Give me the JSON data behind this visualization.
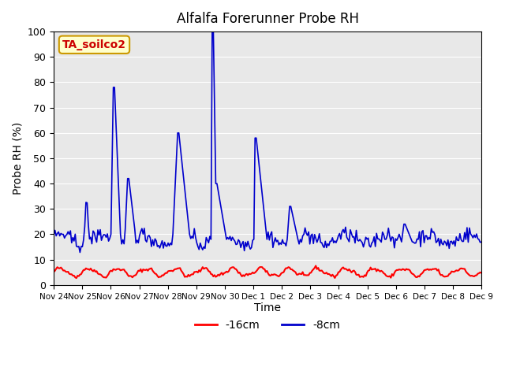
{
  "title": "Alfalfa Forerunner Probe RH",
  "ylabel": "Probe RH (%)",
  "xlabel": "Time",
  "ylim": [
    0,
    100
  ],
  "background_color": "#e8e8e8",
  "annotation_text": "TA_soilco2",
  "annotation_bg": "#ffffcc",
  "annotation_border": "#cc9900",
  "annotation_text_color": "#cc0000",
  "legend_labels": [
    "-16cm",
    "-8cm"
  ],
  "legend_colors": [
    "#ff0000",
    "#0000cc"
  ],
  "x_tick_labels": [
    "Nov 24",
    "Nov 25",
    "Nov 26",
    "Nov 27",
    "Nov 28",
    "Nov 29",
    "Nov 30",
    "Dec 1",
    "Dec 2",
    "Dec 3",
    "Dec 4",
    "Dec 5",
    "Dec 6",
    "Dec 7",
    "Dec 8",
    "Dec 9"
  ],
  "num_points": 360
}
